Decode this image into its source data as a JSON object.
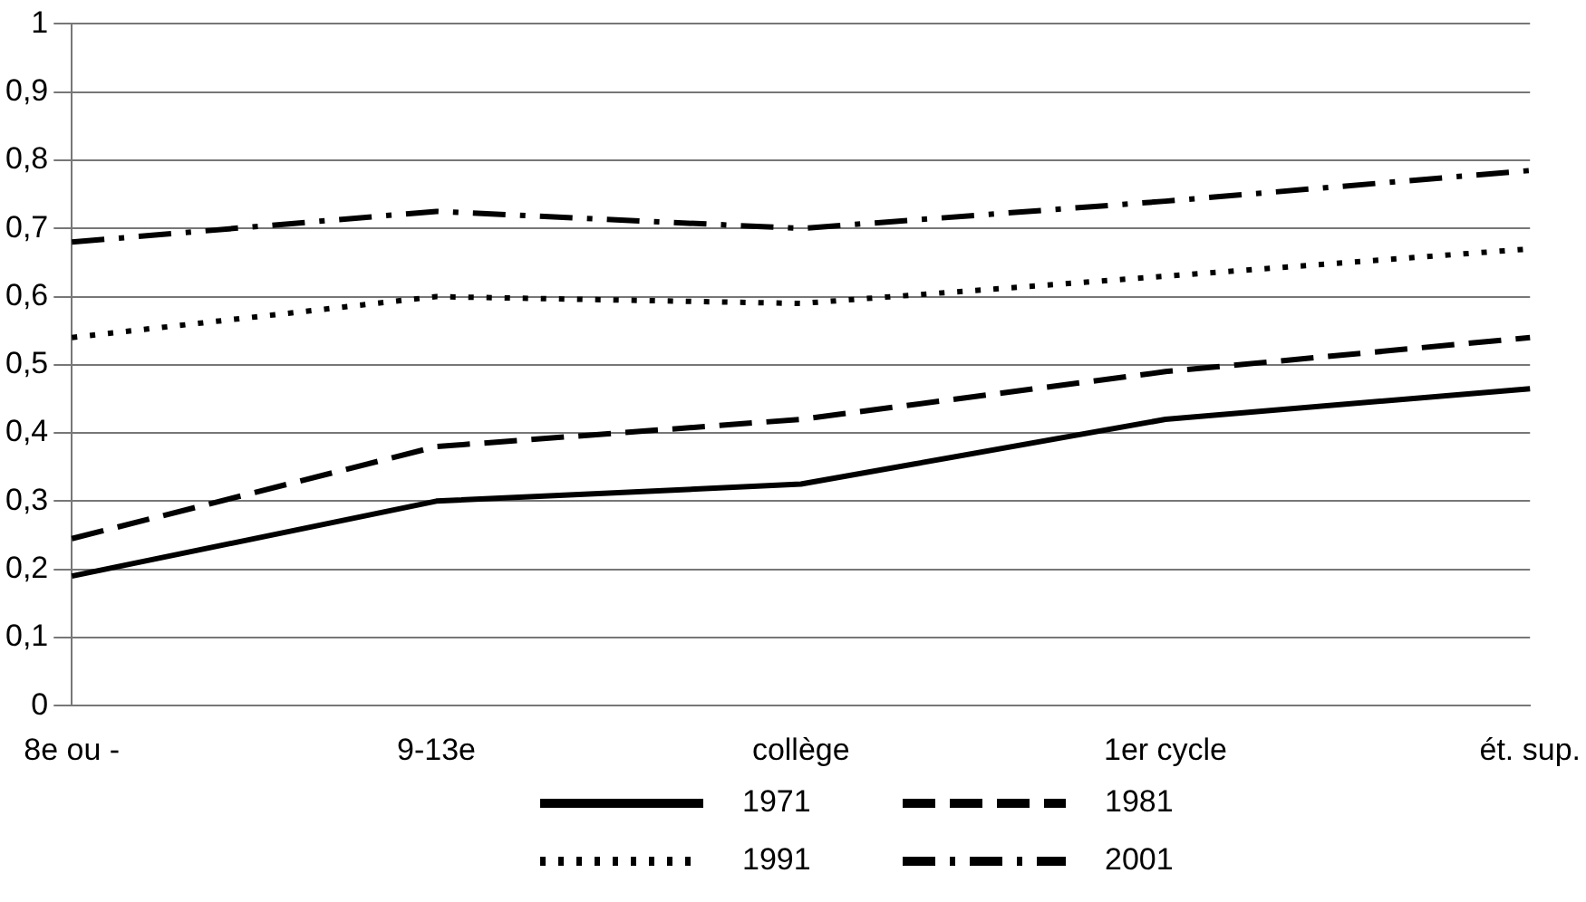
{
  "chart_data": {
    "type": "line",
    "categories": [
      "8e ou -",
      "9-13e",
      "collège",
      "1er cycle",
      "ét. sup."
    ],
    "ylim": [
      0,
      1
    ],
    "yticks": [
      0,
      {
        "value": 0.1,
        "label": "0,1"
      },
      {
        "value": 0.2,
        "label": "0,2"
      },
      {
        "value": 0.3,
        "label": "0,3"
      },
      {
        "value": 0.4,
        "label": "0,4"
      },
      {
        "value": 0.5,
        "label": "0,5"
      },
      {
        "value": 0.6,
        "label": "0,6"
      },
      {
        "value": 0.7,
        "label": "0,7"
      },
      {
        "value": 0.8,
        "label": "0,8"
      },
      {
        "value": 0.9,
        "label": "0,9"
      },
      1
    ],
    "grid": "y",
    "legend": "bottom",
    "marker": "none",
    "series": [
      {
        "name": "1971",
        "color": "#000000",
        "line_style": "solid",
        "values": [
          0.19,
          0.3,
          0.325,
          0.42,
          0.465
        ]
      },
      {
        "name": "1981",
        "color": "#000000",
        "line_style": "dashed",
        "values": [
          0.245,
          0.38,
          0.42,
          0.49,
          0.54
        ]
      },
      {
        "name": "1991",
        "color": "#000000",
        "line_style": "dotted",
        "values": [
          0.54,
          0.6,
          0.59,
          0.63,
          0.67
        ]
      },
      {
        "name": "2001",
        "color": "#000000",
        "line_style": "dashdot",
        "values": [
          0.68,
          0.725,
          0.7,
          0.74,
          0.785
        ]
      }
    ]
  }
}
